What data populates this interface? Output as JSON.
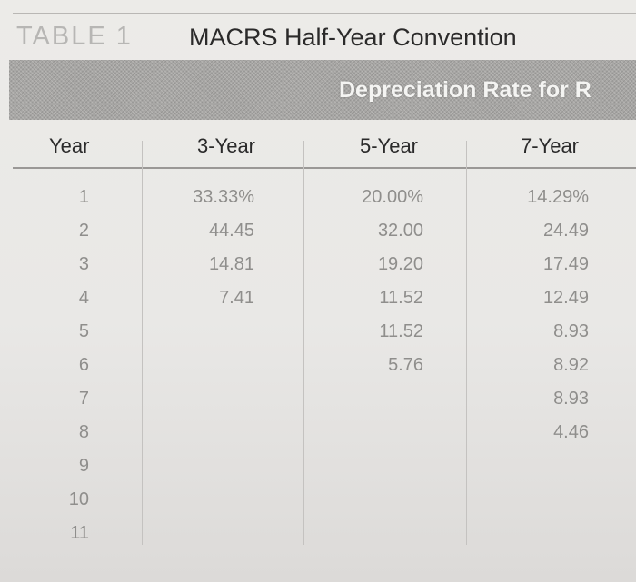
{
  "table": {
    "label": "TABLE 1",
    "title": "MACRS Half-Year Convention",
    "banner": "Depreciation Rate for R",
    "headers": [
      "Year",
      "3-Year",
      "5-Year",
      "7-Year"
    ],
    "years": [
      "1",
      "2",
      "3",
      "4",
      "5",
      "6",
      "7",
      "8",
      "9",
      "10",
      "11"
    ],
    "three_year": [
      "33.33%",
      "44.45",
      "14.81",
      "7.41"
    ],
    "five_year": [
      "20.00%",
      "32.00",
      "19.20",
      "11.52",
      "11.52",
      "5.76"
    ],
    "seven_year": [
      "14.29%",
      "24.49",
      "17.49",
      "12.49",
      "8.93",
      "8.92",
      "8.93",
      "4.46"
    ]
  }
}
